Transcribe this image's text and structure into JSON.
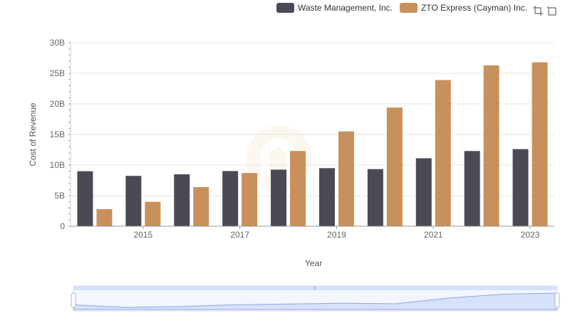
{
  "legend": {
    "items": [
      {
        "label": "Waste Management, Inc.",
        "color": "#4a4a55"
      },
      {
        "label": "ZTO Express (Cayman) Inc.",
        "color": "#c8915c"
      }
    ]
  },
  "toolbox": {
    "icons": [
      "zoom-icon",
      "zoom-reset-icon"
    ]
  },
  "chart_data": {
    "type": "bar",
    "categories": [
      "2014",
      "2015",
      "2016",
      "2017",
      "2018",
      "2019",
      "2020",
      "2021",
      "2022",
      "2023"
    ],
    "x_tick_labels": [
      "2015",
      "2017",
      "2019",
      "2021",
      "2023"
    ],
    "y_tick_labels": [
      "0",
      "5B",
      "10B",
      "15B",
      "20B",
      "25B",
      "30B"
    ],
    "ylabel": "Cost of Revenue",
    "xlabel": "Year",
    "ylim": [
      0,
      30000000000
    ],
    "grid": true,
    "legend_position": "top-right",
    "series": [
      {
        "name": "Waste Management, Inc.",
        "color": "#4a4a55",
        "values": [
          8996000000,
          8231000000,
          8486000000,
          9021000000,
          9249000000,
          9496000000,
          9341000000,
          11111000000,
          12294000000,
          12606000000
        ]
      },
      {
        "name": "ZTO Express (Cayman) Inc.",
        "color": "#c8915c",
        "values": [
          2800000000,
          4000000000,
          6400000000,
          8700000000,
          12300000000,
          15500000000,
          19400000000,
          23900000000,
          26300000000,
          26800000000
        ]
      }
    ]
  },
  "datazoom": {
    "range_percent": [
      0,
      100
    ]
  }
}
